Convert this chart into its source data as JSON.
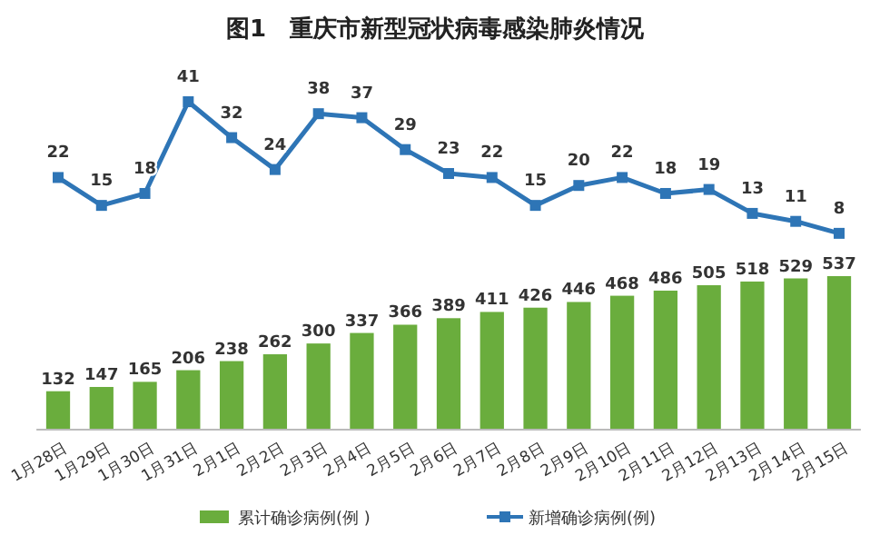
{
  "chart_data": [
    {
      "type": "line",
      "title": "图1　重庆市新型冠状病毒感染肺炎情况",
      "categories": [
        null,
        null,
        null,
        null,
        null,
        null,
        null,
        null,
        null,
        null,
        null,
        null,
        null,
        null,
        null,
        null,
        null,
        null,
        null
      ],
      "series": [
        {
          "name": "新增确诊病例(例)",
          "color": "#2e75b6",
          "values": [
            22,
            15,
            18,
            41,
            32,
            24,
            38,
            37,
            29,
            23,
            22,
            15,
            20,
            22,
            18,
            19,
            13,
            11,
            8
          ]
        }
      ],
      "data_labels": true,
      "marker": "square",
      "legend": "bottom"
    },
    {
      "type": "bar",
      "categories": [
        "1月28日",
        "1月29日",
        "1月30日",
        "1月31日",
        "2月1日",
        "2月2日",
        "2月3日",
        "2月4日",
        "2月5日",
        "2月6日",
        "2月7日",
        "2月8日",
        "2月9日",
        "2月10日",
        "2月11日",
        "2月12日",
        "2月13日",
        "2月14日",
        "2月15日"
      ],
      "series": [
        {
          "name": "累计确诊病例(例 )",
          "color": "#6aad3d",
          "values": [
            132,
            147,
            165,
            206,
            238,
            262,
            300,
            337,
            366,
            389,
            411,
            426,
            446,
            468,
            486,
            505,
            518,
            529,
            537
          ]
        }
      ],
      "data_labels": true,
      "tick_labels": "x",
      "legend": "bottom"
    }
  ]
}
